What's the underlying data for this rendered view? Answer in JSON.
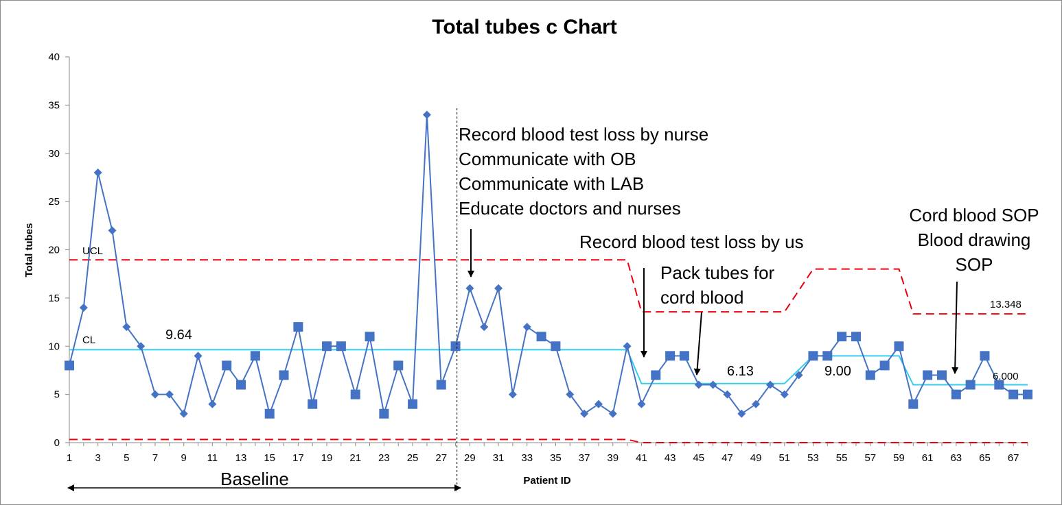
{
  "chart_data": {
    "type": "line",
    "title": "Total tubes c Chart",
    "xlabel": "Patient ID",
    "ylabel": "Total tubes",
    "ylim": [
      0,
      40
    ],
    "yticks": [
      0,
      5,
      10,
      15,
      20,
      25,
      30,
      35,
      40
    ],
    "xlim": [
      1,
      68
    ],
    "xticks": [
      1,
      3,
      5,
      7,
      9,
      11,
      13,
      15,
      17,
      19,
      21,
      23,
      25,
      27,
      29,
      31,
      33,
      35,
      37,
      39,
      41,
      43,
      45,
      47,
      49,
      51,
      53,
      55,
      57,
      59,
      61,
      63,
      65,
      67
    ],
    "series": [
      {
        "x": [
          1,
          2,
          3,
          4,
          5,
          6,
          7,
          8,
          9,
          10,
          11,
          12,
          13,
          14,
          15,
          16,
          17,
          18,
          19,
          20,
          21,
          22,
          23,
          24,
          25,
          26,
          27,
          28,
          29,
          30,
          31,
          32,
          33,
          34,
          35,
          36,
          37,
          38,
          39,
          40,
          41,
          42,
          43,
          44,
          45,
          46,
          47,
          48,
          49,
          50,
          51,
          52,
          53,
          54,
          55,
          56,
          57,
          58,
          59,
          60,
          61,
          62,
          63,
          64,
          65,
          66,
          67,
          68
        ],
        "values": [
          8,
          14,
          28,
          22,
          12,
          10,
          5,
          5,
          3,
          9,
          4,
          8,
          6,
          9,
          3,
          7,
          12,
          4,
          10,
          10,
          5,
          11,
          3,
          8,
          4,
          34,
          6,
          10,
          16,
          12,
          16,
          5,
          12,
          11,
          10,
          5,
          3,
          4,
          3,
          10,
          4,
          7,
          9,
          9,
          6,
          6,
          5,
          3,
          4,
          6,
          5,
          7,
          9,
          9,
          11,
          11,
          7,
          8,
          10,
          4,
          7,
          7,
          5,
          6,
          9,
          6,
          5,
          5
        ],
        "markers": [
          "s",
          "d",
          "d",
          "d",
          "d",
          "d",
          "d",
          "d",
          "d",
          "d",
          "d",
          "s",
          "s",
          "s",
          "s",
          "s",
          "s",
          "s",
          "s",
          "s",
          "s",
          "s",
          "s",
          "s",
          "s",
          "d",
          "s",
          "s",
          "d",
          "d",
          "d",
          "d",
          "d",
          "s",
          "s",
          "d",
          "d",
          "d",
          "d",
          "d",
          "d",
          "s",
          "s",
          "s",
          "d",
          "d",
          "d",
          "d",
          "d",
          "d",
          "d",
          "d",
          "s",
          "s",
          "s",
          "s",
          "s",
          "s",
          "s",
          "s",
          "s",
          "s",
          "s",
          "s",
          "s",
          "s",
          "s",
          "s"
        ],
        "color": "#4472c4"
      }
    ],
    "center_line": {
      "color": "#33ccee",
      "segments": [
        {
          "x": [
            1,
            40
          ],
          "y": 9.64
        },
        {
          "x": [
            41,
            51
          ],
          "y": 6.13
        },
        {
          "x": [
            53,
            59
          ],
          "y": 9.0
        },
        {
          "x": [
            60,
            68
          ],
          "y": 6.0
        }
      ]
    },
    "ucl": {
      "color": "#e8000b",
      "segments": [
        {
          "x": [
            1,
            40
          ],
          "y": 18.95
        },
        {
          "x": [
            41,
            51
          ],
          "y": 13.56
        },
        {
          "x": [
            53,
            59
          ],
          "y": 18.0
        },
        {
          "x": [
            60,
            68
          ],
          "y": 13.348
        }
      ]
    },
    "lcl": {
      "color": "#e8000b",
      "segments": [
        {
          "x": [
            1,
            40
          ],
          "y": 0.33
        },
        {
          "x": [
            41,
            68
          ],
          "y": 0
        }
      ]
    },
    "baseline_divider_x": 28.1,
    "line_labels": {
      "ucl": "UCL",
      "cl": "CL",
      "cl_baseline": "9.64",
      "cl_phase2": "6.13",
      "cl_phase3": "9.00",
      "cl_phase4": "6.000",
      "ucl_phase4": "13.348"
    },
    "baseline_label": "Baseline",
    "annotations": [
      {
        "lines": [
          "Record blood test loss by nurse",
          "Communicate with OB",
          "Communicate with LAB",
          "Educate doctors and nurses"
        ],
        "arrow_to": [
          29,
          16
        ]
      },
      {
        "lines": [
          "Record blood test loss by us"
        ],
        "arrow_to": [
          41,
          9
        ]
      },
      {
        "lines": [
          "Pack tubes for",
          "cord blood"
        ],
        "arrow_to": [
          45,
          7
        ]
      },
      {
        "lines": [
          "Cord blood SOP",
          "Blood drawing",
          "SOP"
        ],
        "arrow_to": [
          63,
          7.2
        ]
      }
    ]
  }
}
